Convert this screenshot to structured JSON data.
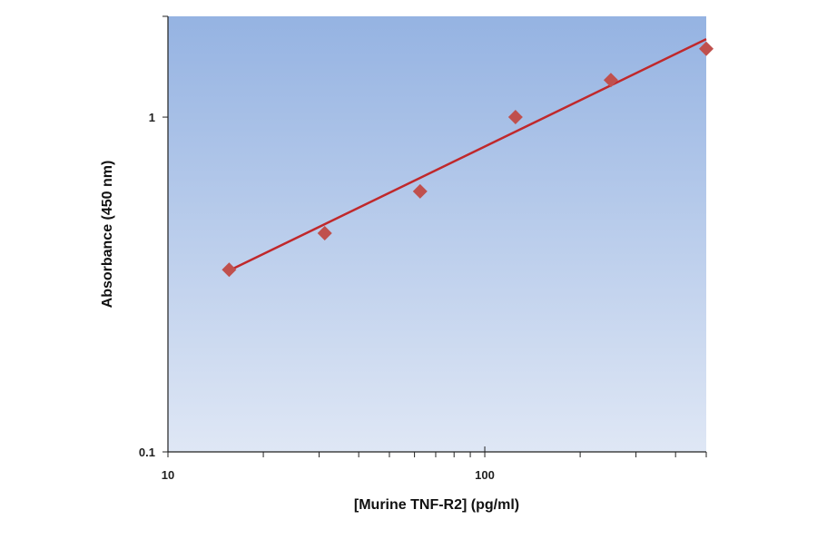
{
  "chart_data": {
    "type": "scatter",
    "title": "",
    "xlabel": "[Murine TNF-R2] (pg/ml)",
    "ylabel": "Absorbance (450 nm)",
    "x_scale": "log",
    "y_scale": "log",
    "xlim": [
      10,
      500
    ],
    "ylim": [
      0.1,
      2
    ],
    "x_tick_labels": [
      {
        "value": 10,
        "label": "10"
      },
      {
        "value": 100,
        "label": "100"
      }
    ],
    "y_tick_labels": [
      {
        "value": 0.1,
        "label": "0.1"
      },
      {
        "value": 1,
        "label": "1"
      }
    ],
    "x_minor_ticks": [
      20,
      30,
      40,
      50,
      60,
      70,
      80,
      90,
      200,
      300,
      400,
      500
    ],
    "grid": false,
    "series": [
      {
        "type": "scatter",
        "marker": "diamond",
        "color": "#c0504d",
        "x": [
          15.6,
          31.25,
          62.5,
          125,
          250,
          500
        ],
        "y": [
          0.35,
          0.45,
          0.6,
          1.0,
          1.29,
          1.6
        ]
      },
      {
        "type": "line",
        "fit": "power trendline",
        "color": "#c0282b",
        "x": [
          15.6,
          500
        ],
        "y": [
          0.348,
          1.71
        ]
      }
    ],
    "background_gradient": [
      "#95b3e2",
      "#dfe7f5"
    ]
  }
}
